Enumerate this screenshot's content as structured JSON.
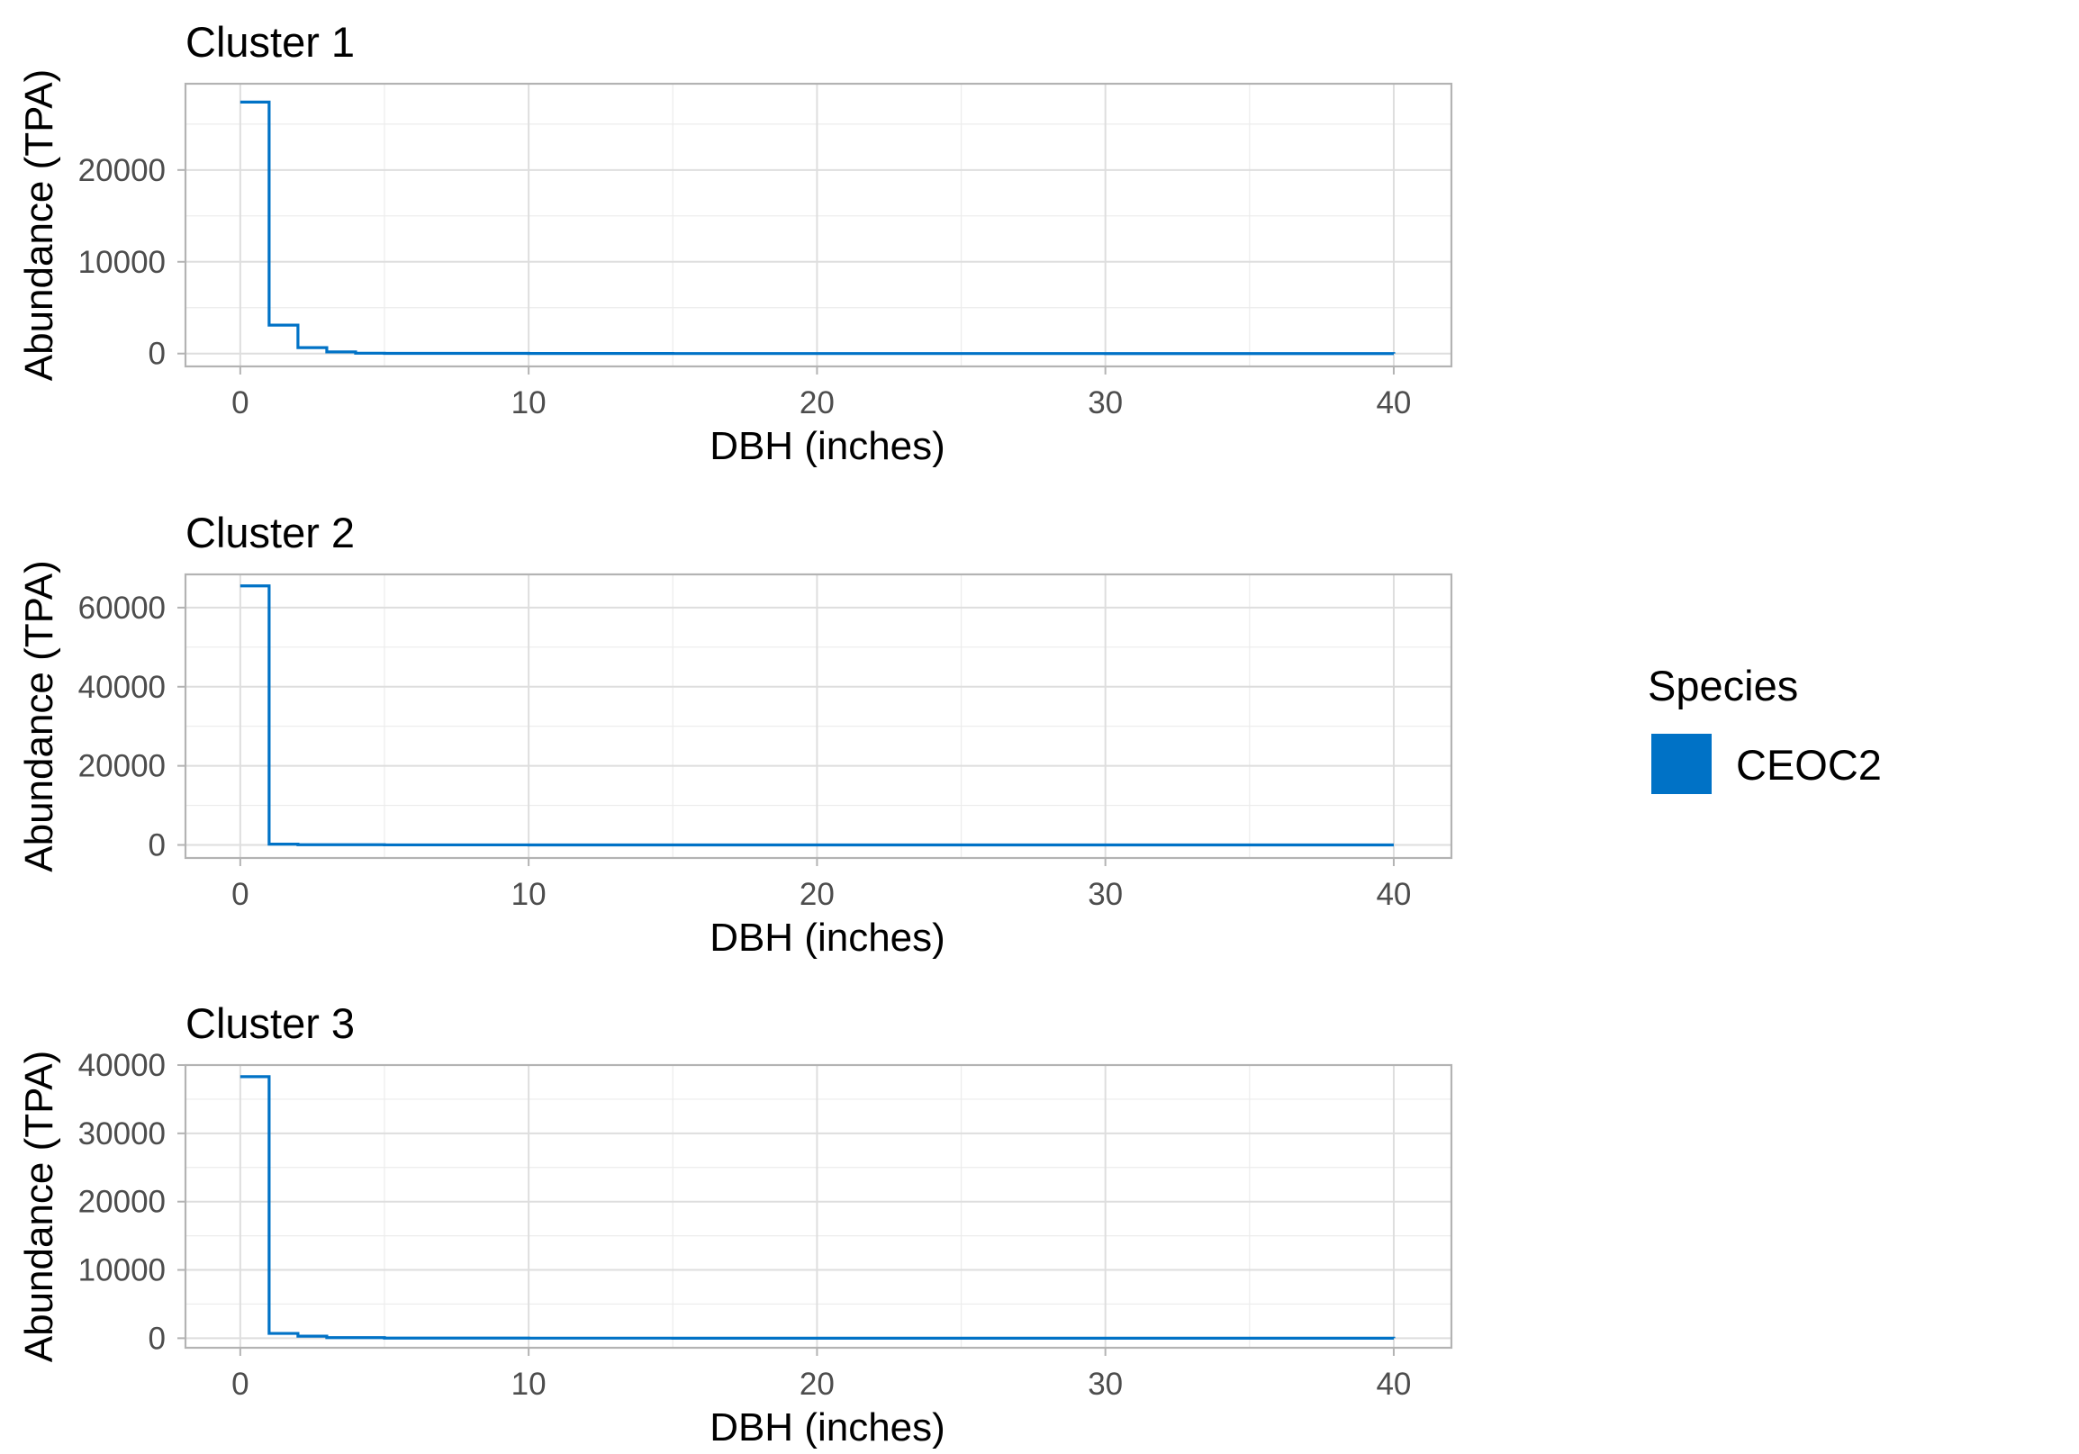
{
  "legend": {
    "title": "Species",
    "items": [
      {
        "label": "CEOC2",
        "color": "#0072C6"
      }
    ]
  },
  "chart_data": [
    {
      "type": "line",
      "step": true,
      "title": "Cluster 1",
      "xlabel": "DBH (inches)",
      "ylabel": "Abundance (TPA)",
      "xlim": [
        -1.9,
        42
      ],
      "ylim": [
        -1400,
        29400
      ],
      "xticks": [
        0,
        10,
        20,
        30,
        40
      ],
      "yticks": [
        0,
        10000,
        20000
      ],
      "grid": true,
      "legend_position": "right",
      "series": [
        {
          "name": "CEOC2",
          "color": "#0072C6",
          "x": [
            0,
            1,
            2,
            3,
            4,
            5,
            10,
            15,
            20,
            25,
            30,
            35,
            40
          ],
          "y": [
            27400,
            3100,
            650,
            180,
            40,
            20,
            10,
            5,
            3,
            2,
            1,
            1,
            0
          ]
        }
      ]
    },
    {
      "type": "line",
      "step": true,
      "title": "Cluster 2",
      "xlabel": "DBH (inches)",
      "ylabel": "Abundance (TPA)",
      "xlim": [
        -1.9,
        42
      ],
      "ylim": [
        -3300,
        68400
      ],
      "xticks": [
        0,
        10,
        20,
        30,
        40
      ],
      "yticks": [
        0,
        20000,
        40000,
        60000
      ],
      "grid": true,
      "legend_position": "right",
      "series": [
        {
          "name": "CEOC2",
          "color": "#0072C6",
          "x": [
            0,
            1,
            2,
            5,
            10,
            15,
            20,
            25,
            30,
            35,
            40
          ],
          "y": [
            65500,
            200,
            50,
            10,
            5,
            3,
            2,
            1,
            1,
            0,
            0
          ]
        }
      ]
    },
    {
      "type": "line",
      "step": true,
      "title": "Cluster 3",
      "xlabel": "DBH (inches)",
      "ylabel": "Abundance (TPA)",
      "xlim": [
        -1.9,
        42
      ],
      "ylim": [
        -1400,
        40000
      ],
      "xticks": [
        0,
        10,
        20,
        30,
        40
      ],
      "yticks": [
        0,
        10000,
        20000,
        30000,
        40000
      ],
      "grid": true,
      "legend_position": "right",
      "series": [
        {
          "name": "CEOC2",
          "color": "#0072C6",
          "x": [
            0,
            1,
            2,
            3,
            5,
            10,
            15,
            20,
            25,
            30,
            35,
            40
          ],
          "y": [
            38300,
            700,
            300,
            80,
            20,
            10,
            5,
            3,
            2,
            1,
            1,
            0
          ]
        }
      ]
    }
  ]
}
